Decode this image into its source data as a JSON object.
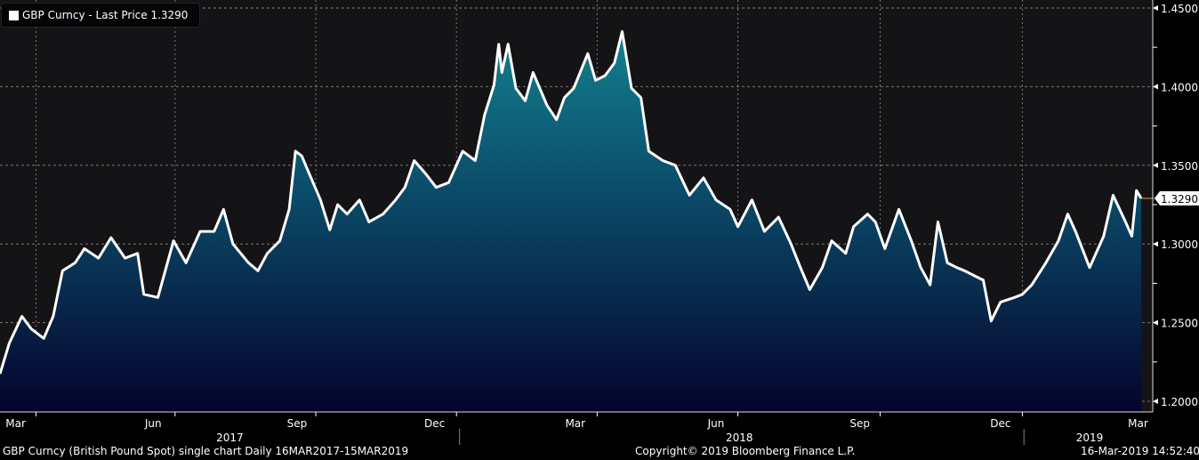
{
  "legend": {
    "label": "GBP Curncy - Last Price 1.3290"
  },
  "footer": {
    "left": "GBP Curncy (British Pound Spot) single chart  Daily 16MAR2017-15MAR2019",
    "center": "Copyright© 2019 Bloomberg Finance L.P.",
    "right": "16-Mar-2019 14:52:40"
  },
  "colors": {
    "line": "#ffffff",
    "fill_top": "#13808e",
    "fill_mid": "#0a4866",
    "fill_bottom": "#05032c",
    "background": "#141417",
    "last_price_marker": "#e8a23a"
  },
  "chart_data": {
    "type": "area",
    "title": "GBP Curncy - Last Price",
    "x_unit": "days since 16MAR2017",
    "xlim": [
      0,
      730
    ],
    "ylim": [
      1.19,
      1.455
    ],
    "y_ticks": [
      "1.2000",
      "1.2500",
      "1.3000",
      "1.3500",
      "1.4000",
      "1.4500"
    ],
    "y_tick_values": [
      1.2,
      1.25,
      1.3,
      1.35,
      1.4,
      1.45
    ],
    "last_price": "1.3290",
    "last_price_value": 1.329,
    "grid": true,
    "v_grid_days": [
      23,
      112,
      202,
      292,
      382,
      472,
      563,
      654
    ],
    "month_ticks": [
      {
        "label": "Mar",
        "day": 10
      },
      {
        "label": "Jun",
        "day": 98
      },
      {
        "label": "Sep",
        "day": 190
      },
      {
        "label": "Dec",
        "day": 278
      },
      {
        "label": "Mar",
        "day": 368
      },
      {
        "label": "Jun",
        "day": 458
      },
      {
        "label": "Sep",
        "day": 550
      },
      {
        "label": "Dec",
        "day": 640
      },
      {
        "label": "Mar",
        "day": 728
      }
    ],
    "year_labels": [
      {
        "label": "2017",
        "day": 147
      },
      {
        "label": "2018",
        "day": 473
      },
      {
        "label": "2019",
        "day": 697
      }
    ],
    "year_separators": [
      294,
      655
    ],
    "x": [
      0,
      6,
      14,
      20,
      28,
      34,
      40,
      48,
      54,
      63,
      71,
      80,
      88,
      92,
      101,
      111,
      119,
      128,
      137,
      143,
      149,
      159,
      165,
      171,
      179,
      185,
      189,
      193,
      199,
      205,
      211,
      216,
      222,
      230,
      236,
      245,
      253,
      259,
      265,
      272,
      279,
      287,
      296,
      304,
      310,
      316,
      319,
      321,
      325,
      330,
      336,
      341,
      350,
      356,
      361,
      367,
      376,
      381,
      387,
      393,
      398,
      404,
      410,
      415,
      424,
      432,
      441,
      450,
      458,
      467,
      472,
      481,
      489,
      498,
      506,
      512,
      518,
      526,
      532,
      541,
      546,
      555,
      560,
      566,
      575,
      583,
      589,
      595,
      600,
      606,
      612,
      617,
      623,
      629,
      634,
      640,
      649,
      654,
      660,
      669,
      677,
      683,
      688,
      697,
      706,
      712,
      720,
      724,
      727,
      730
    ],
    "y": [
      1.2175,
      1.237,
      1.254,
      1.246,
      1.24,
      1.254,
      1.283,
      1.288,
      1.297,
      1.291,
      1.304,
      1.291,
      1.294,
      1.268,
      1.266,
      1.302,
      1.288,
      1.308,
      1.308,
      1.322,
      1.3,
      1.288,
      1.283,
      1.294,
      1.302,
      1.322,
      1.359,
      1.356,
      1.342,
      1.328,
      1.309,
      1.325,
      1.319,
      1.328,
      1.314,
      1.319,
      1.328,
      1.336,
      1.353,
      1.345,
      1.336,
      1.339,
      1.359,
      1.353,
      1.382,
      1.401,
      1.427,
      1.409,
      1.427,
      1.399,
      1.391,
      1.409,
      1.388,
      1.379,
      1.393,
      1.399,
      1.421,
      1.404,
      1.407,
      1.415,
      1.435,
      1.399,
      1.393,
      1.359,
      1.353,
      1.35,
      1.331,
      1.342,
      1.328,
      1.322,
      1.311,
      1.328,
      1.308,
      1.317,
      1.3,
      1.285,
      1.271,
      1.285,
      1.302,
      1.294,
      1.311,
      1.319,
      1.314,
      1.297,
      1.322,
      1.302,
      1.285,
      1.274,
      1.314,
      1.288,
      1.285,
      1.283,
      1.28,
      1.277,
      1.251,
      1.263,
      1.266,
      1.268,
      1.274,
      1.288,
      1.302,
      1.319,
      1.308,
      1.285,
      1.305,
      1.331,
      1.314,
      1.305,
      1.334,
      1.329
    ]
  }
}
